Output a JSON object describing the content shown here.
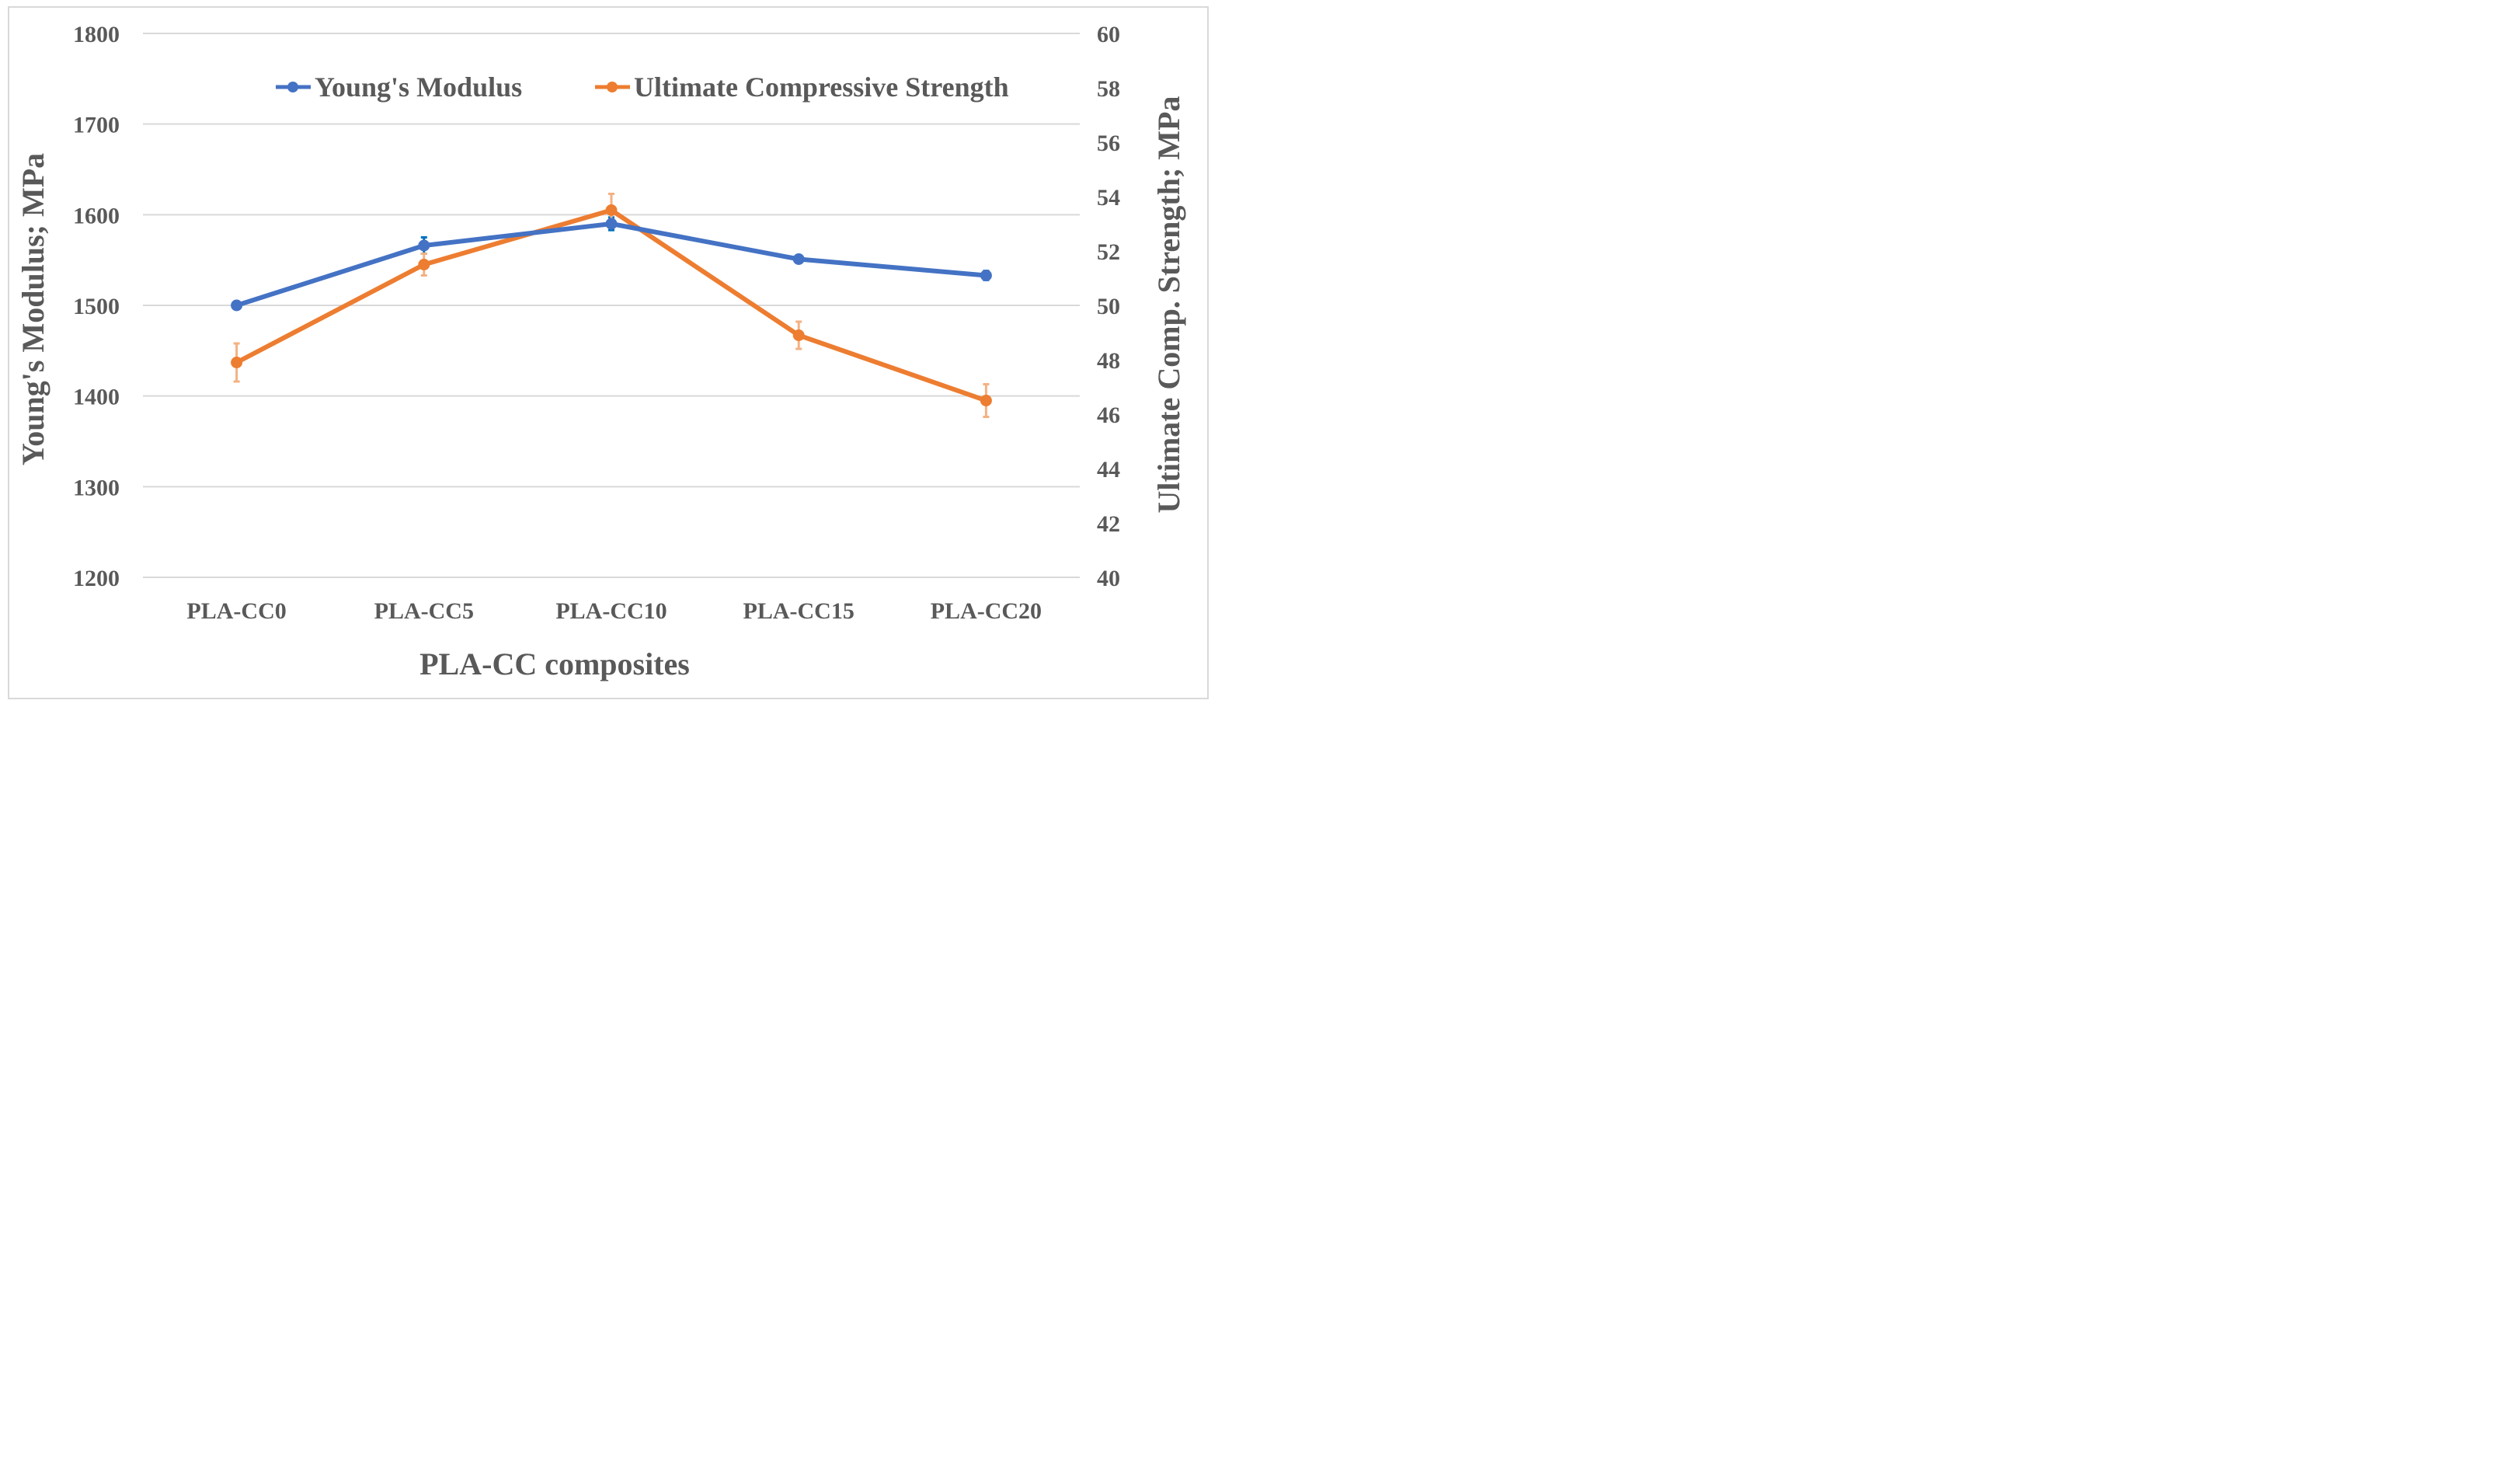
{
  "chart_data": {
    "type": "line",
    "title": "",
    "categories": [
      "PLA-CC0",
      "PLA-CC5",
      "PLA-CC10",
      "PLA-CC15",
      "PLA-CC20"
    ],
    "xlabel": "PLA-CC composites",
    "ylabel": "Young's Modulus; MPa",
    "y2label": "Ultimate Comp. Strength; MPa",
    "ylim": [
      1200,
      1800
    ],
    "y2lim": [
      40,
      60
    ],
    "yticks": [
      "1200",
      "1300",
      "1400",
      "1500",
      "1600",
      "1700",
      "1800"
    ],
    "y2ticks": [
      "40",
      "42",
      "44",
      "46",
      "48",
      "50",
      "52",
      "54",
      "56",
      "58",
      "60"
    ],
    "grid": true,
    "legend_position": "top",
    "series": [
      {
        "name": "Young's Modulus",
        "axis": "left",
        "color": "#4472c4",
        "error_color": "#0070c0",
        "values": [
          1500,
          1566,
          1590,
          1551,
          1533
        ],
        "errors": [
          3,
          9,
          7,
          3,
          5
        ]
      },
      {
        "name": "Ultimate Compressive Strength",
        "axis": "right",
        "color": "#ed7d31",
        "error_color": "#f4b183",
        "values": [
          47.9,
          51.5,
          53.5,
          48.9,
          46.5
        ],
        "errors": [
          0.7,
          0.4,
          0.6,
          0.5,
          0.6
        ]
      }
    ]
  }
}
